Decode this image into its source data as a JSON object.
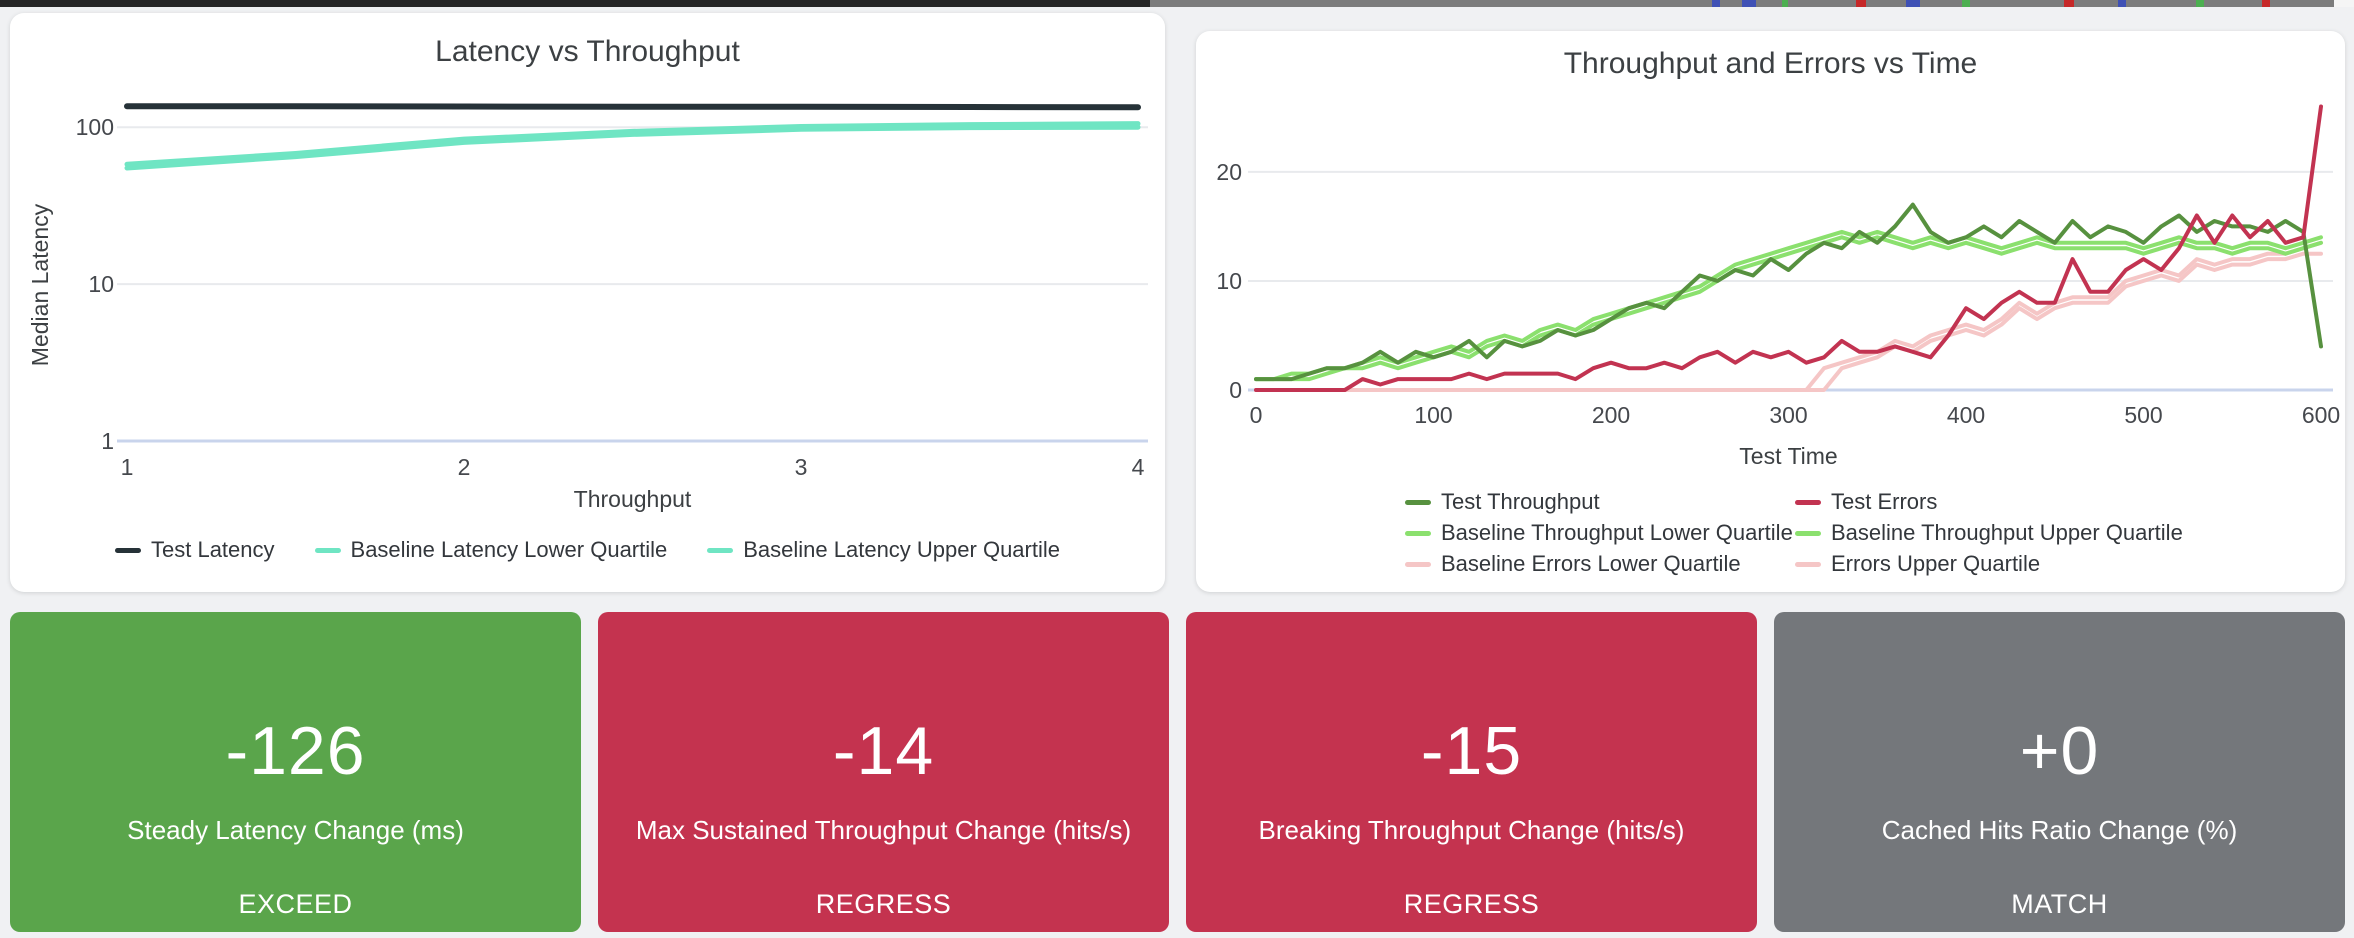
{
  "page": {
    "background": "#f0f1f3"
  },
  "colors": {
    "grid": "#e8eaed",
    "axis_baseline": "#c9d4ec",
    "tick_text": "#45484d",
    "title_text": "#3c4043",
    "navy": "#263238",
    "mint": "#6fe5c3",
    "dark_green": "#57913f",
    "light_green": "#8be06e",
    "crimson": "#c23351",
    "pink": "#f5c6c6",
    "card_green": "#5aa54b",
    "card_red": "#c4334f",
    "card_gray": "#74777b"
  },
  "chart_data": [
    {
      "type": "line",
      "title": "Latency vs Throughput",
      "xlabel": "Throughput",
      "ylabel": "Median Latency",
      "y_scale": "log",
      "x_range": [
        1,
        4
      ],
      "y_range": [
        1,
        200
      ],
      "grid": true,
      "legend_position": "bottom",
      "x_ticks": [
        {
          "v": 1,
          "label": "1"
        },
        {
          "v": 2,
          "label": "2"
        },
        {
          "v": 3,
          "label": "3"
        },
        {
          "v": 4,
          "label": "4"
        }
      ],
      "y_ticks": [
        {
          "v": 1,
          "label": "1",
          "axis": true
        },
        {
          "v": 10,
          "label": "10"
        },
        {
          "v": 100,
          "label": "100"
        }
      ],
      "series": [
        {
          "name": "Baseline Latency Lower Quartile",
          "color": "#6fe5c3",
          "width": 5,
          "points": [
            [
              1,
              55
            ],
            [
              1.5,
              65
            ],
            [
              2,
              80
            ],
            [
              2.5,
              90
            ],
            [
              3,
              97
            ],
            [
              3.5,
              99.5
            ],
            [
              4,
              100
            ]
          ]
        },
        {
          "name": "Baseline Latency Upper Quartile",
          "color": "#6fe5c3",
          "width": 5,
          "points": [
            [
              1,
              58
            ],
            [
              1.5,
              68
            ],
            [
              2,
              84
            ],
            [
              2.5,
              94
            ],
            [
              3,
              101
            ],
            [
              3.5,
              104
            ],
            [
              4,
              105.5
            ]
          ]
        },
        {
          "name": "Test Latency",
          "color": "#263238",
          "width": 6,
          "points": [
            [
              1,
              136
            ],
            [
              1.5,
              136
            ],
            [
              2,
              135.5
            ],
            [
              2.5,
              135
            ],
            [
              3,
              135
            ],
            [
              3.5,
              134.5
            ],
            [
              4,
              134
            ]
          ]
        }
      ],
      "legend": [
        {
          "label": "Test Latency",
          "color": "#263238"
        },
        {
          "label": "Baseline Latency Lower Quartile",
          "color": "#6fe5c3"
        },
        {
          "label": "Baseline Latency Upper Quartile",
          "color": "#6fe5c3"
        }
      ]
    },
    {
      "type": "line",
      "title": "Throughput and Errors vs Time",
      "xlabel": "Test Time",
      "ylabel": "",
      "y_scale": "linear",
      "x_range": [
        0,
        600
      ],
      "y_range": [
        0,
        26.5
      ],
      "grid": true,
      "legend_position": "bottom",
      "x_ticks": [
        {
          "v": 0,
          "label": "0"
        },
        {
          "v": 100,
          "label": "100"
        },
        {
          "v": 200,
          "label": "200"
        },
        {
          "v": 300,
          "label": "300"
        },
        {
          "v": 400,
          "label": "400"
        },
        {
          "v": 500,
          "label": "500"
        },
        {
          "v": 600,
          "label": "600"
        }
      ],
      "y_ticks": [
        {
          "v": 0,
          "label": "0",
          "axis": true
        },
        {
          "v": 10,
          "label": "10"
        },
        {
          "v": 20,
          "label": "20"
        }
      ],
      "series": [
        {
          "name": "Errors Upper Quartile",
          "color": "#f5c6c6",
          "width": 4,
          "x0": 0,
          "dx": 10,
          "values": [
            0,
            0,
            0,
            0,
            0,
            0,
            0,
            0,
            0,
            0,
            0,
            0,
            0,
            0,
            0,
            0,
            0,
            0,
            0,
            0,
            0,
            0,
            0,
            0,
            0,
            0,
            0,
            0,
            0,
            0,
            0,
            0,
            2,
            2.5,
            3,
            3.5,
            4.5,
            4,
            5,
            5.5,
            6,
            5.5,
            6.5,
            8,
            7,
            8,
            8.5,
            8.5,
            8.5,
            10,
            10.5,
            11,
            10.5,
            12,
            11.5,
            12,
            12,
            12.5,
            12.5,
            13,
            13.5
          ]
        },
        {
          "name": "Baseline Errors Lower Quartile",
          "color": "#f5c6c6",
          "width": 4,
          "x0": 0,
          "dx": 10,
          "values": [
            0,
            0,
            0,
            0,
            0,
            0,
            0,
            0,
            0,
            0,
            0,
            0,
            0,
            0,
            0,
            0,
            0,
            0,
            0,
            0,
            0,
            0,
            0,
            0,
            0,
            0,
            0,
            0,
            0,
            0,
            0,
            0,
            0,
            2,
            2.5,
            3,
            4,
            3.5,
            4.5,
            5,
            5.5,
            5,
            6,
            7.5,
            6.5,
            7.5,
            8,
            8,
            8,
            9.5,
            10,
            10.5,
            10,
            11.5,
            11,
            11.5,
            11.5,
            12,
            12,
            12.5,
            12.5
          ]
        },
        {
          "name": "Baseline Throughput Upper Quartile",
          "color": "#8be06e",
          "width": 4,
          "x0": 0,
          "dx": 10,
          "values": [
            1,
            1,
            1.5,
            1.5,
            2,
            2,
            2.5,
            3,
            2.5,
            3,
            3.5,
            4,
            3.5,
            4.5,
            5,
            4.5,
            5.5,
            6,
            5.5,
            6.5,
            7,
            7.5,
            8,
            8.5,
            9,
            9.5,
            10.5,
            11.5,
            12,
            12.5,
            13,
            13.5,
            14,
            14.5,
            14,
            14.5,
            14,
            13.5,
            14,
            13.5,
            14,
            13.5,
            13,
            13.5,
            14,
            13.5,
            13.5,
            13.5,
            13.5,
            13.5,
            13,
            13.5,
            14,
            13.5,
            13.5,
            13,
            13.5,
            13.5,
            13,
            13.5,
            14
          ]
        },
        {
          "name": "Baseline Throughput Lower Quartile",
          "color": "#8be06e",
          "width": 4,
          "x0": 0,
          "dx": 10,
          "values": [
            1,
            1,
            1,
            1,
            1.5,
            2,
            2,
            2.5,
            2,
            2.5,
            3,
            3.5,
            3,
            4,
            4.5,
            4,
            5,
            5.5,
            5,
            6,
            6.5,
            7,
            7.5,
            8,
            8.5,
            9,
            10,
            11,
            11.5,
            12,
            12.5,
            13,
            13.5,
            14,
            13.5,
            14,
            13.5,
            13,
            13.5,
            13,
            13.5,
            13,
            12.5,
            13,
            13.5,
            13,
            13,
            13,
            13,
            13,
            12.5,
            13,
            13.5,
            13,
            13,
            12.5,
            13,
            13,
            12.5,
            13,
            13.5
          ]
        },
        {
          "name": "Test Throughput",
          "color": "#57913f",
          "width": 4,
          "x0": 0,
          "dx": 10,
          "values": [
            1,
            1,
            1,
            1.5,
            2,
            2,
            2.5,
            3.5,
            2.5,
            3.5,
            3,
            3.5,
            4.5,
            3,
            4.5,
            4,
            4.5,
            5.5,
            5,
            5.5,
            6.5,
            7.5,
            8,
            7.5,
            9,
            10.5,
            10,
            11,
            10.5,
            12,
            11,
            12.5,
            13.5,
            13,
            14.5,
            13.5,
            15,
            17,
            14.5,
            13.5,
            14,
            15,
            14,
            15.5,
            14.5,
            13.5,
            15.5,
            14,
            15,
            14.5,
            13.5,
            15,
            16,
            14.5,
            15.5,
            15,
            15,
            14.5,
            15.5,
            14.5,
            4
          ]
        },
        {
          "name": "Test Errors",
          "color": "#c23351",
          "width": 4,
          "x0": 0,
          "dx": 10,
          "values": [
            0,
            0,
            0,
            0,
            0,
            0,
            1,
            0.5,
            1,
            1,
            1,
            1,
            1.5,
            1,
            1.5,
            1.5,
            1.5,
            1.5,
            1,
            2,
            2.5,
            2,
            2,
            2.5,
            2,
            3,
            3.5,
            2.5,
            3.5,
            3,
            3.5,
            2.5,
            3,
            4.5,
            3.5,
            3.5,
            4,
            3.5,
            3,
            5,
            7.5,
            6.5,
            8,
            9,
            8,
            8,
            12,
            9,
            9,
            11,
            12,
            11,
            13,
            16,
            13.5,
            16,
            14,
            15.5,
            13.5,
            14,
            26
          ]
        }
      ],
      "legend": [
        {
          "label": "Test Throughput",
          "color": "#57913f"
        },
        {
          "label": "Test Errors",
          "color": "#c23351"
        },
        {
          "label": "Baseline Throughput Lower Quartile",
          "color": "#8be06e"
        },
        {
          "label": "Baseline Throughput Upper Quartile",
          "color": "#8be06e"
        },
        {
          "label": "Baseline Errors Lower Quartile",
          "color": "#f5c6c6"
        },
        {
          "label": "Errors Upper Quartile",
          "color": "#f5c6c6"
        }
      ]
    }
  ],
  "cards": [
    {
      "value": "-126",
      "label": "Steady Latency Change (ms)",
      "status": "EXCEED",
      "color": "#5aa54b"
    },
    {
      "value": "-14",
      "label": "Max Sustained Throughput Change (hits/s)",
      "status": "REGRESS",
      "color": "#c4334f"
    },
    {
      "value": "-15",
      "label": "Breaking Throughput Change (hits/s)",
      "status": "REGRESS",
      "color": "#c4334f"
    },
    {
      "value": "+0",
      "label": "Cached Hits Ratio Change (%)",
      "status": "MATCH",
      "color": "#74777b"
    }
  ]
}
